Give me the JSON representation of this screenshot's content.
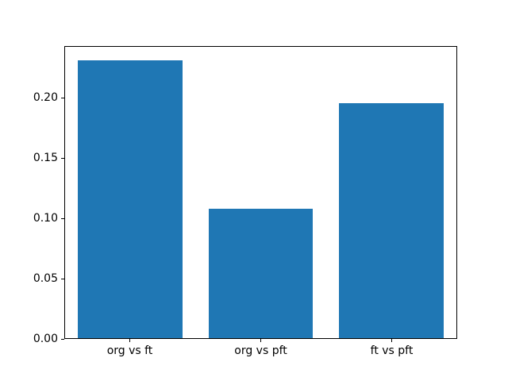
{
  "chart_data": {
    "type": "bar",
    "title": "",
    "xlabel": "",
    "ylabel": "",
    "categories": [
      "org vs ft",
      "org vs pft",
      "ft vs pft"
    ],
    "values": [
      0.232,
      0.108,
      0.196
    ],
    "ylim": [
      0,
      0.243
    ],
    "yticks": {
      "values": [
        0,
        0.05,
        0.1,
        0.15,
        0.2
      ],
      "labels": [
        "0.00",
        "0.05",
        "0.10",
        "0.15",
        "0.20"
      ]
    },
    "bar_width_fraction": 0.8,
    "bar_color": "#1f77b4",
    "spine_color": "#000000",
    "background_color": "#ffffff",
    "grid": false,
    "legend": null
  }
}
